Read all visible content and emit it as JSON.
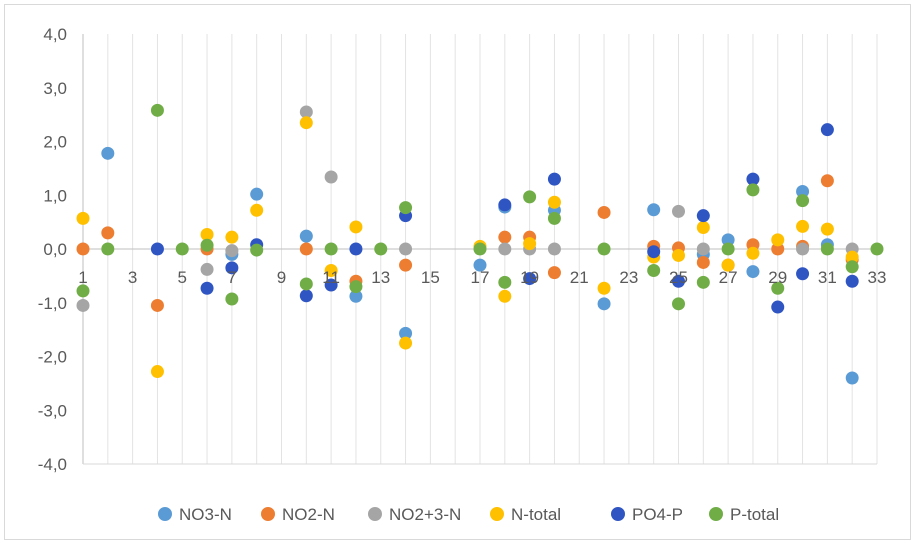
{
  "chart_data": {
    "type": "scatter",
    "title": "",
    "xlabel": "",
    "ylabel": "",
    "xlim": [
      1,
      33
    ],
    "ylim": [
      -4,
      4
    ],
    "y_ticks": [
      "-4,0",
      "-3,0",
      "-2,0",
      "-1,0",
      "0,0",
      "1,0",
      "2,0",
      "3,0",
      "4,0"
    ],
    "x_ticks": [
      "1",
      "3",
      "5",
      "7",
      "9",
      "11",
      "13",
      "15",
      "17",
      "19",
      "21",
      "23",
      "25",
      "27",
      "29",
      "31",
      "33"
    ],
    "grid": "vertical-only",
    "legend_position": "bottom",
    "series": [
      {
        "name": "NO3-N",
        "color": "#5b9bd5",
        "points": [
          [
            2,
            1.78
          ],
          [
            7,
            -0.1
          ],
          [
            8,
            1.02
          ],
          [
            10,
            0.24
          ],
          [
            12,
            -0.88
          ],
          [
            14,
            -1.57
          ],
          [
            17,
            -0.3
          ],
          [
            18,
            0.78
          ],
          [
            20,
            0.72
          ],
          [
            22,
            -1.02
          ],
          [
            24,
            0.73
          ],
          [
            26,
            -0.1
          ],
          [
            27,
            0.17
          ],
          [
            28,
            -0.42
          ],
          [
            30,
            1.07
          ],
          [
            31,
            0.08
          ],
          [
            32,
            -2.4
          ]
        ]
      },
      {
        "name": "NO2-N",
        "color": "#ed7d31",
        "points": [
          [
            1,
            0.0
          ],
          [
            2,
            0.3
          ],
          [
            4,
            -1.05
          ],
          [
            6,
            0.0
          ],
          [
            10,
            0.0
          ],
          [
            12,
            -0.6
          ],
          [
            14,
            -0.3
          ],
          [
            18,
            0.22
          ],
          [
            19,
            0.22
          ],
          [
            20,
            -0.44
          ],
          [
            22,
            0.68
          ],
          [
            24,
            0.05
          ],
          [
            25,
            0.02
          ],
          [
            26,
            -0.25
          ],
          [
            27,
            -0.3
          ],
          [
            28,
            0.08
          ],
          [
            29,
            0.0
          ],
          [
            30,
            0.05
          ],
          [
            31,
            1.27
          ],
          [
            32,
            -0.2
          ]
        ]
      },
      {
        "name": "NO2+3-N",
        "color": "#a5a5a5",
        "points": [
          [
            1,
            -1.05
          ],
          [
            6,
            -0.38
          ],
          [
            7,
            -0.03
          ],
          [
            10,
            2.55
          ],
          [
            11,
            1.34
          ],
          [
            14,
            0.0
          ],
          [
            18,
            0.0
          ],
          [
            19,
            0.0
          ],
          [
            20,
            0.0
          ],
          [
            25,
            0.7
          ],
          [
            26,
            0.0
          ],
          [
            30,
            0.0
          ],
          [
            32,
            0.0
          ]
        ]
      },
      {
        "name": "N-total",
        "color": "#ffc000",
        "points": [
          [
            1,
            0.57
          ],
          [
            4,
            -2.28
          ],
          [
            6,
            0.27
          ],
          [
            7,
            0.22
          ],
          [
            8,
            0.72
          ],
          [
            10,
            2.35
          ],
          [
            11,
            -0.4
          ],
          [
            12,
            0.41
          ],
          [
            14,
            -1.75
          ],
          [
            17,
            0.05
          ],
          [
            18,
            -0.88
          ],
          [
            19,
            0.1
          ],
          [
            20,
            0.87
          ],
          [
            22,
            -0.73
          ],
          [
            24,
            -0.15
          ],
          [
            25,
            -0.12
          ],
          [
            26,
            0.4
          ],
          [
            27,
            -0.3
          ],
          [
            28,
            -0.08
          ],
          [
            29,
            0.17
          ],
          [
            30,
            0.42
          ],
          [
            31,
            0.37
          ],
          [
            32,
            -0.15
          ]
        ]
      },
      {
        "name": "PO4-P",
        "color": "#2f55c3",
        "points": [
          [
            4,
            0.0
          ],
          [
            6,
            -0.73
          ],
          [
            7,
            -0.35
          ],
          [
            8,
            0.08
          ],
          [
            10,
            -0.87
          ],
          [
            11,
            -0.67
          ],
          [
            12,
            0.0
          ],
          [
            14,
            0.62
          ],
          [
            18,
            0.82
          ],
          [
            19,
            -0.55
          ],
          [
            20,
            1.3
          ],
          [
            24,
            -0.05
          ],
          [
            25,
            -0.6
          ],
          [
            26,
            0.62
          ],
          [
            28,
            1.3
          ],
          [
            29,
            -1.08
          ],
          [
            30,
            -0.46
          ],
          [
            31,
            2.22
          ],
          [
            32,
            -0.6
          ]
        ]
      },
      {
        "name": "P-total",
        "color": "#70ad47",
        "points": [
          [
            1,
            -0.78
          ],
          [
            2,
            0.0
          ],
          [
            4,
            2.58
          ],
          [
            5,
            0.0
          ],
          [
            6,
            0.07
          ],
          [
            7,
            -0.93
          ],
          [
            8,
            -0.02
          ],
          [
            10,
            -0.65
          ],
          [
            11,
            0.0
          ],
          [
            12,
            -0.7
          ],
          [
            13,
            0.0
          ],
          [
            14,
            0.77
          ],
          [
            17,
            0.0
          ],
          [
            18,
            -0.62
          ],
          [
            19,
            0.97
          ],
          [
            20,
            0.57
          ],
          [
            22,
            0.0
          ],
          [
            24,
            -0.4
          ],
          [
            25,
            -1.02
          ],
          [
            26,
            -0.62
          ],
          [
            27,
            0.0
          ],
          [
            28,
            1.1
          ],
          [
            29,
            -0.73
          ],
          [
            30,
            0.9
          ],
          [
            31,
            0.0
          ],
          [
            32,
            -0.33
          ],
          [
            33,
            0.0
          ]
        ]
      }
    ]
  }
}
